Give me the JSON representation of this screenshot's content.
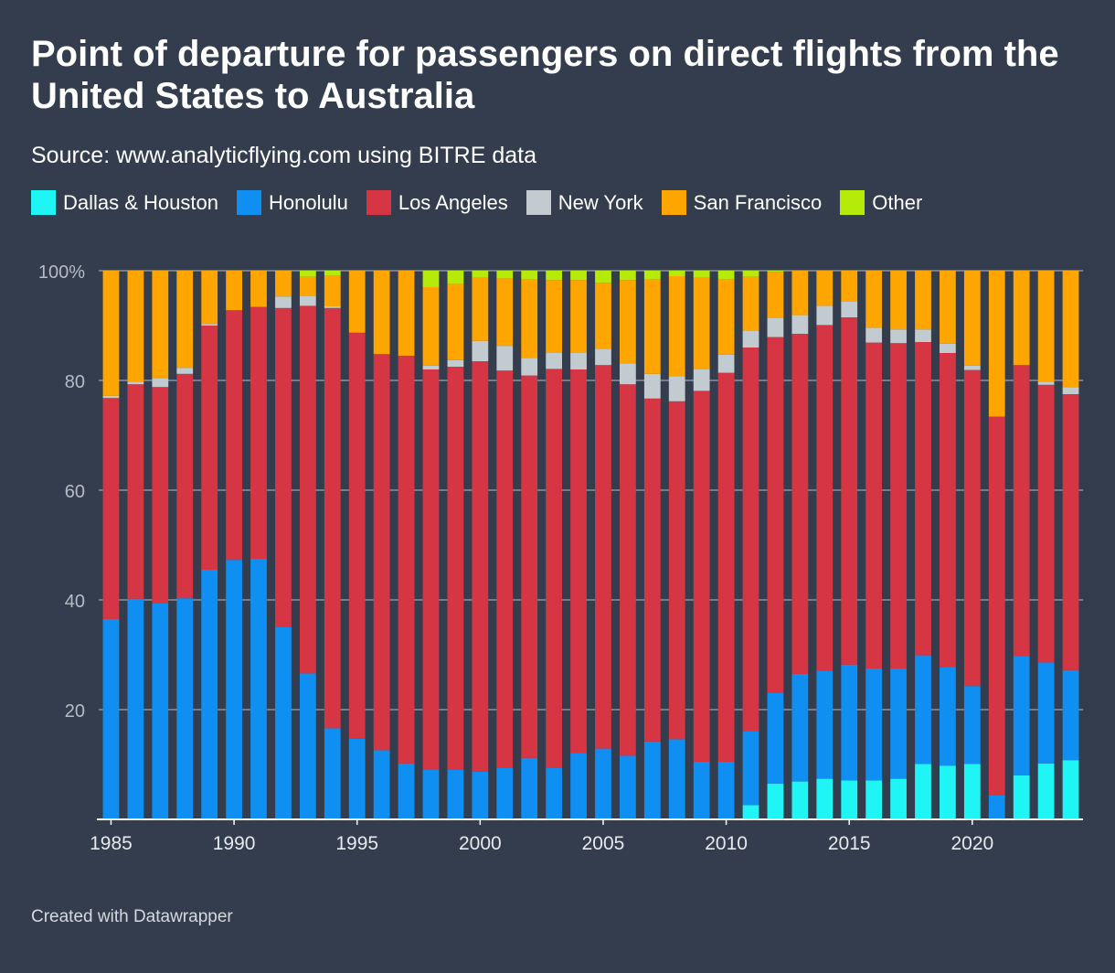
{
  "title": "Point of departure for passengers on direct flights from the United States to Australia",
  "subtitle": "Source: www.analyticflying.com using BITRE data",
  "footer": "Created with Datawrapper",
  "legend": [
    {
      "label": "Dallas & Houston",
      "color": "#1ff5f5"
    },
    {
      "label": "Honolulu",
      "color": "#0f8ff2"
    },
    {
      "label": "Los Angeles",
      "color": "#d63644"
    },
    {
      "label": "New York",
      "color": "#c2cbd0"
    },
    {
      "label": "San Francisco",
      "color": "#ffa500"
    },
    {
      "label": "Other",
      "color": "#b6ea08"
    }
  ],
  "chart_data": {
    "type": "bar",
    "stacked": true,
    "title": "Point of departure for passengers on direct flights from the United States to Australia",
    "ylim": [
      0,
      100
    ],
    "yticks": [
      "20",
      "40",
      "60",
      "80",
      "100%"
    ],
    "xticks": [
      "1985",
      "1990",
      "1995",
      "2000",
      "2005",
      "2010",
      "2015",
      "2020"
    ],
    "grid": true,
    "legend_position": "top",
    "categories": [
      "1985",
      "1986",
      "1987",
      "1988",
      "1989",
      "1990",
      "1991",
      "1992",
      "1993",
      "1994",
      "1995",
      "1996",
      "1997",
      "1998",
      "1999",
      "2000",
      "2001",
      "2002",
      "2003",
      "2004",
      "2005",
      "2006",
      "2007",
      "2008",
      "2009",
      "2010",
      "2011",
      "2012",
      "2013",
      "2014",
      "2015",
      "2016",
      "2017",
      "2018",
      "2019",
      "2020",
      "2021",
      "2022",
      "2023",
      "2024"
    ],
    "series": [
      {
        "name": "Dallas & Houston",
        "color": "#1ff5f5",
        "values": [
          0,
          0,
          0,
          0,
          0,
          0,
          0,
          0,
          0,
          0,
          0,
          0,
          0,
          0,
          0,
          0,
          0,
          0,
          0,
          0,
          0,
          0,
          0,
          0,
          0,
          0,
          2.6,
          6.5,
          6.9,
          7.4,
          7.1,
          7.1,
          7.4,
          10.1,
          9.8,
          10.1,
          0,
          8.0,
          10.2,
          10.8
        ]
      },
      {
        "name": "Honolulu",
        "color": "#0f8ff2",
        "values": [
          36.5,
          40.2,
          39.4,
          40.3,
          45.5,
          47.3,
          47.5,
          35.0,
          26.6,
          16.6,
          14.7,
          12.6,
          10.2,
          9.1,
          9.0,
          8.7,
          9.4,
          11.2,
          9.4,
          12.1,
          12.9,
          11.6,
          14.2,
          14.6,
          10.5,
          10.5,
          13.5,
          16.5,
          19.6,
          19.7,
          21.1,
          20.4,
          20.1,
          19.8,
          18.0,
          14.2,
          4.4,
          21.8,
          18.4,
          16.4
        ]
      },
      {
        "name": "Los Angeles",
        "color": "#d63644",
        "values": [
          40.3,
          39.1,
          39.4,
          40.9,
          44.5,
          45.5,
          45.9,
          58.2,
          67.0,
          76.6,
          74.0,
          72.2,
          74.3,
          72.9,
          73.5,
          74.8,
          72.4,
          69.7,
          72.7,
          69.9,
          69.9,
          67.7,
          62.5,
          61.6,
          67.6,
          70.9,
          69.9,
          64.9,
          62.0,
          63.0,
          63.3,
          59.4,
          59.3,
          57.1,
          57.2,
          57.6,
          69.0,
          53.0,
          50.6,
          50.3
        ]
      },
      {
        "name": "New York",
        "color": "#c2cbd0",
        "values": [
          0.4,
          0.5,
          1.6,
          1.1,
          0.3,
          0,
          0,
          2.1,
          1.8,
          0.3,
          0,
          0,
          0,
          0.7,
          1.2,
          3.7,
          4.5,
          3.2,
          2.9,
          3.0,
          3.0,
          3.8,
          4.5,
          4.6,
          3.9,
          3.3,
          3.0,
          3.5,
          3.4,
          3.5,
          2.9,
          2.7,
          2.5,
          2.3,
          1.7,
          0.8,
          0,
          0,
          0.6,
          1.3
        ]
      },
      {
        "name": "San Francisco",
        "color": "#ffa500",
        "values": [
          22.8,
          20.2,
          19.6,
          17.7,
          9.7,
          7.2,
          6.6,
          4.7,
          3.5,
          5.6,
          11.3,
          15.2,
          15.5,
          14.3,
          13.9,
          11.5,
          12.3,
          14.4,
          13.3,
          13.3,
          12.0,
          15.2,
          17.3,
          18.2,
          16.7,
          13.8,
          9.9,
          8.4,
          8.1,
          6.4,
          5.6,
          10.4,
          10.7,
          10.7,
          13.3,
          17.3,
          26.6,
          17.2,
          20.2,
          21.2
        ]
      },
      {
        "name": "Other",
        "color": "#b6ea08",
        "values": [
          0,
          0,
          0,
          0,
          0,
          0,
          0,
          0,
          1.1,
          0.9,
          0,
          0,
          0,
          3.0,
          2.4,
          1.3,
          1.4,
          1.5,
          1.7,
          1.7,
          2.2,
          1.7,
          1.5,
          1.0,
          1.3,
          1.5,
          1.1,
          0.2,
          0,
          0,
          0,
          0,
          0,
          0,
          0,
          0,
          0,
          0,
          0,
          0
        ]
      }
    ]
  }
}
